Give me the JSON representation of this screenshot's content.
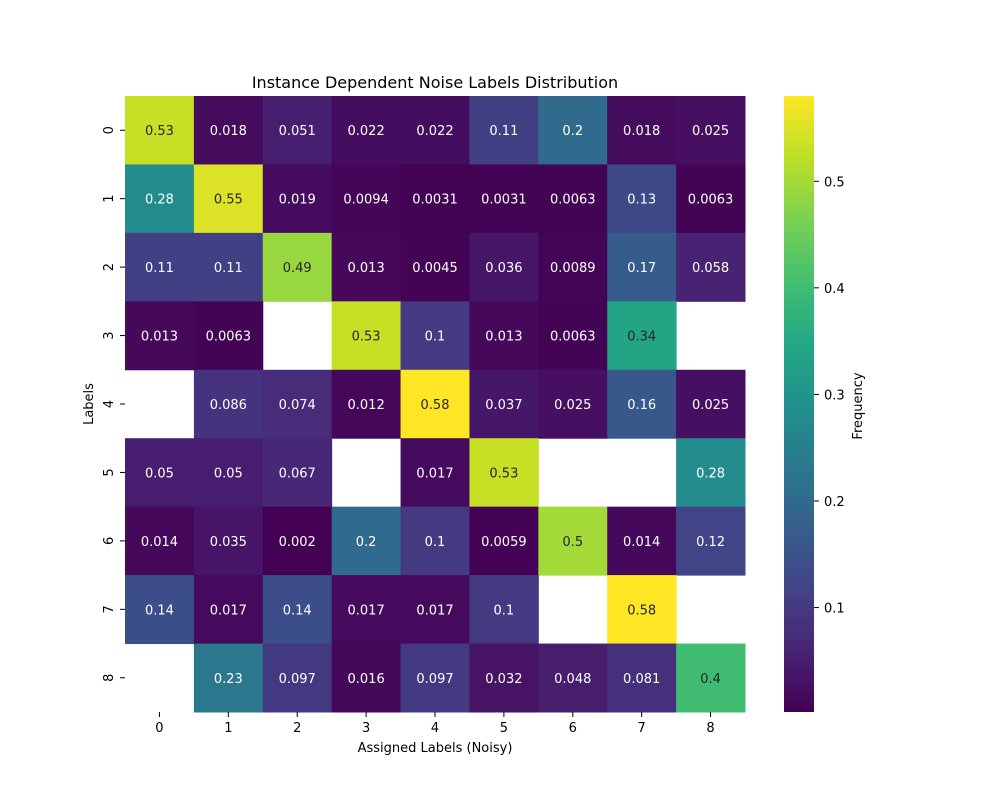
{
  "chart_data": {
    "type": "heatmap",
    "title": "Instance Dependent Noise Labels Distribution",
    "xlabel": "Assigned Labels (Noisy)",
    "ylabel": "Labels",
    "x_categories": [
      "0",
      "1",
      "2",
      "3",
      "4",
      "5",
      "6",
      "7",
      "8"
    ],
    "y_categories": [
      "0",
      "1",
      "2",
      "3",
      "4",
      "5",
      "6",
      "7",
      "8"
    ],
    "values": [
      [
        0.53,
        0.018,
        0.051,
        0.022,
        0.022,
        0.11,
        0.2,
        0.018,
        0.025
      ],
      [
        0.28,
        0.55,
        0.019,
        0.0094,
        0.0031,
        0.0031,
        0.0063,
        0.13,
        0.0063
      ],
      [
        0.11,
        0.11,
        0.49,
        0.013,
        0.0045,
        0.036,
        0.0089,
        0.17,
        0.058
      ],
      [
        0.013,
        0.0063,
        null,
        0.53,
        0.1,
        0.013,
        0.0063,
        0.34,
        null
      ],
      [
        null,
        0.086,
        0.074,
        0.012,
        0.58,
        0.037,
        0.025,
        0.16,
        0.025
      ],
      [
        0.05,
        0.05,
        0.067,
        null,
        0.017,
        0.53,
        null,
        null,
        0.28
      ],
      [
        0.014,
        0.035,
        0.002,
        0.2,
        0.1,
        0.0059,
        0.5,
        0.014,
        0.12
      ],
      [
        0.14,
        0.017,
        0.14,
        0.017,
        0.017,
        0.1,
        null,
        0.58,
        null
      ],
      [
        null,
        0.23,
        0.097,
        0.016,
        0.097,
        0.032,
        0.048,
        0.081,
        0.4
      ]
    ],
    "colormap": "viridis",
    "colorbar": {
      "label": "Frequency",
      "range": [
        0.002,
        0.58
      ],
      "ticks": [
        0.1,
        0.2,
        0.3,
        0.4,
        0.5
      ],
      "tick_labels": [
        "0.1",
        "0.2",
        "0.3",
        "0.4",
        "0.5"
      ]
    },
    "grid": false,
    "legend": "colorbar-right"
  }
}
